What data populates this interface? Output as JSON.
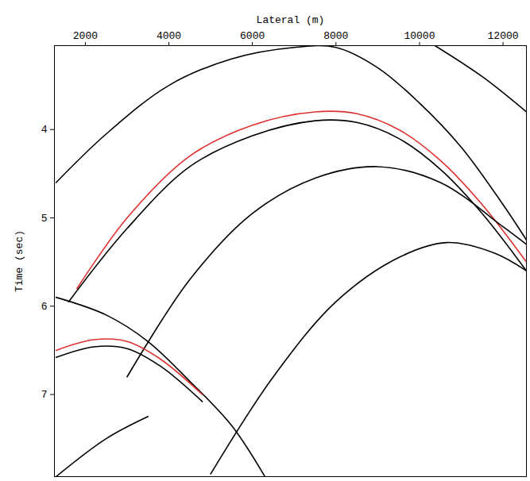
{
  "chart_data": {
    "type": "line",
    "x_label": "Lateral (m)",
    "y_label": "Time (sec)",
    "xlim": [
      1260,
      12560
    ],
    "xticks": [
      2000,
      4000,
      6000,
      8000,
      10000,
      12000
    ],
    "ylim": [
      3.05,
      7.93
    ],
    "yticks": [
      4,
      5,
      6,
      7
    ],
    "grid": false,
    "series": [
      {
        "color": "#000000",
        "x": [
          1300,
          2500,
          4000,
          5500,
          7000,
          8000,
          9000,
          10000,
          11000,
          12000,
          12560
        ],
        "values": [
          4.6,
          4.05,
          3.5,
          3.2,
          3.07,
          3.07,
          3.3,
          3.7,
          4.2,
          4.85,
          5.25
        ]
      },
      {
        "color": "#e03030",
        "x": [
          1800,
          3000,
          4500,
          6000,
          7500,
          8500,
          9500,
          10500,
          11500,
          12560
        ],
        "values": [
          5.8,
          5.0,
          4.3,
          3.95,
          3.8,
          3.82,
          4.0,
          4.35,
          4.85,
          5.5
        ]
      },
      {
        "color": "#000000",
        "x": [
          1600,
          3000,
          4500,
          6000,
          7500,
          8500,
          9500,
          10500,
          11500,
          12560
        ],
        "values": [
          5.95,
          5.12,
          4.42,
          4.07,
          3.9,
          3.92,
          4.1,
          4.45,
          4.95,
          5.6
        ]
      },
      {
        "color": "#000000",
        "x": [
          3000,
          4500,
          6000,
          7500,
          9000,
          10500,
          12000,
          12560
        ],
        "values": [
          6.8,
          5.7,
          4.95,
          4.55,
          4.42,
          4.6,
          5.1,
          5.3
        ]
      },
      {
        "color": "#000000",
        "x": [
          5000,
          6500,
          8000,
          9500,
          10650,
          11800,
          12560
        ],
        "values": [
          7.9,
          6.8,
          5.95,
          5.45,
          5.28,
          5.4,
          5.6
        ]
      },
      {
        "color": "#000000",
        "x": [
          1300,
          2500,
          3500,
          4500,
          5500,
          6300
        ],
        "values": [
          5.9,
          6.1,
          6.4,
          6.85,
          7.35,
          7.93
        ]
      },
      {
        "color": "#e03030",
        "x": [
          1300,
          2200,
          3000,
          3800,
          4800
        ],
        "values": [
          6.5,
          6.38,
          6.4,
          6.6,
          7.0
        ]
      },
      {
        "color": "#000000",
        "x": [
          1300,
          2200,
          3000,
          3800,
          4800
        ],
        "values": [
          6.58,
          6.46,
          6.48,
          6.68,
          7.08
        ]
      },
      {
        "color": "#000000",
        "x": [
          1300,
          2500,
          3500
        ],
        "values": [
          7.93,
          7.5,
          7.25
        ]
      },
      {
        "color": "#000000",
        "x": [
          10370,
          11500,
          12560
        ],
        "values": [
          3.05,
          3.4,
          3.8
        ]
      }
    ]
  }
}
